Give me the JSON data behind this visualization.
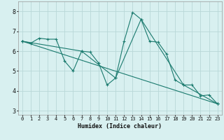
{
  "xlabel": "Humidex (Indice chaleur)",
  "ylabel": "",
  "background_color": "#d8f0f0",
  "grid_color": "#b8d8d8",
  "line_color": "#1a7a6e",
  "xlim": [
    -0.5,
    23.5
  ],
  "ylim": [
    2.8,
    8.5
  ],
  "xticks": [
    0,
    1,
    2,
    3,
    4,
    5,
    6,
    7,
    8,
    9,
    10,
    11,
    12,
    13,
    14,
    15,
    16,
    17,
    18,
    19,
    20,
    21,
    22,
    23
  ],
  "yticks": [
    3,
    4,
    5,
    6,
    7,
    8
  ],
  "series": [
    {
      "x": [
        0,
        1,
        2,
        3,
        4,
        5,
        6,
        7,
        8,
        9,
        10,
        11,
        12,
        13,
        14,
        15,
        16,
        17,
        18,
        19,
        20,
        21,
        22,
        23
      ],
      "y": [
        6.5,
        6.4,
        6.65,
        6.6,
        6.6,
        5.5,
        5.0,
        6.0,
        5.95,
        5.4,
        4.3,
        4.65,
        6.5,
        7.95,
        7.6,
        6.5,
        6.45,
        5.85,
        4.55,
        4.3,
        4.3,
        3.75,
        3.8,
        3.35
      ]
    },
    {
      "x": [
        0,
        7,
        11,
        14,
        19,
        23
      ],
      "y": [
        6.5,
        6.0,
        4.65,
        7.6,
        4.3,
        3.35
      ]
    },
    {
      "x": [
        0,
        23
      ],
      "y": [
        6.5,
        3.35
      ]
    }
  ]
}
